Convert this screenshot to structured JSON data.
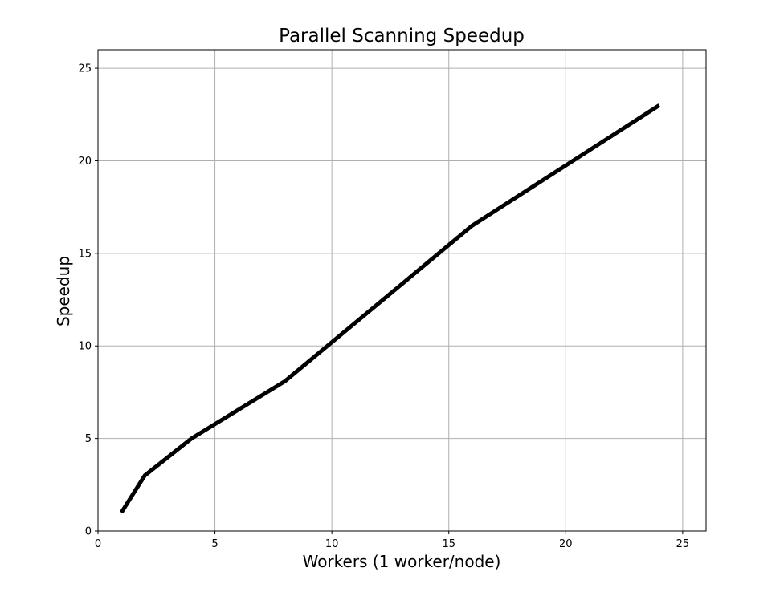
{
  "chart_data": {
    "type": "line",
    "title": "Parallel Scanning Speedup",
    "xlabel": "Workers (1 worker/node)",
    "ylabel": "Speedup",
    "xlim": [
      0,
      26
    ],
    "ylim": [
      0,
      26
    ],
    "xticks": [
      0,
      5,
      10,
      15,
      20,
      25
    ],
    "yticks": [
      0,
      5,
      10,
      15,
      20,
      25
    ],
    "grid": true,
    "legend": "none",
    "series": [
      {
        "color": "#000000",
        "x": [
          1,
          2,
          4,
          8,
          16,
          24
        ],
        "y": [
          1.0,
          3.0,
          5.0,
          8.1,
          16.5,
          23.0
        ]
      }
    ]
  }
}
